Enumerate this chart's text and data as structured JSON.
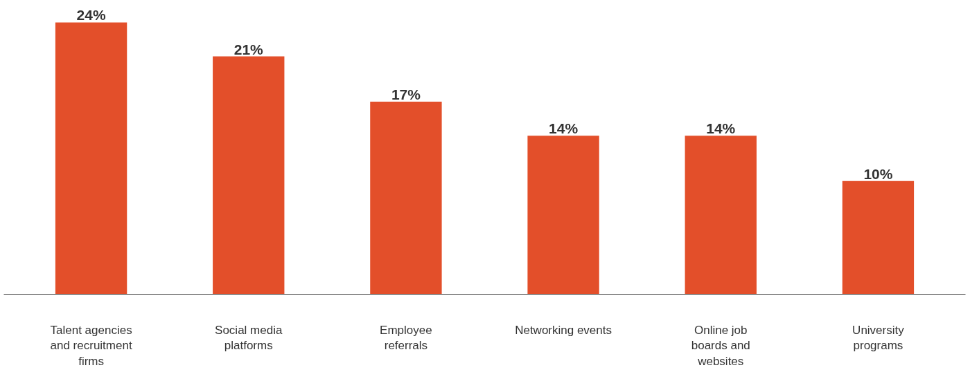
{
  "chart_data": {
    "type": "bar",
    "categories": [
      "Talent agencies\nand recruitment\nfirms",
      "Social media\nplatforms",
      "Employee\nreferrals",
      "Networking events",
      "Online job\nboards and\nwebsites",
      "University\nprograms"
    ],
    "values": [
      24,
      21,
      17,
      14,
      14,
      10
    ],
    "value_labels": [
      "24%",
      "21%",
      "17%",
      "14%",
      "14%",
      "10%"
    ],
    "color": "#e34f2a"
  }
}
